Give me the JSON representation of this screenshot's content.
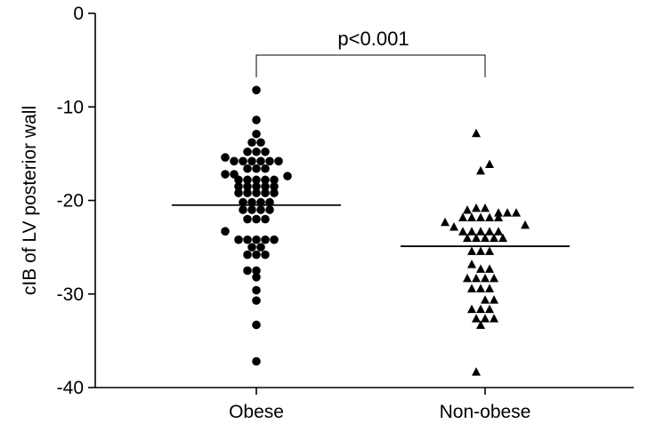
{
  "chart_data": {
    "type": "scatter",
    "subtype": "dot-plot",
    "ylabel": "cIB of LV posterior wall",
    "ylim": [
      -40,
      0
    ],
    "yticks": [
      0,
      -10,
      -20,
      -30,
      -40
    ],
    "categories": [
      "Obese",
      "Non-obese"
    ],
    "grid": false,
    "legend": "none",
    "annotation": {
      "text": "p<0.001",
      "between": [
        "Obese",
        "Non-obese"
      ]
    },
    "series": [
      {
        "category": "Obese",
        "marker": "circle",
        "mean": -20.5,
        "points": [
          [
            0,
            -8.2
          ],
          [
            0,
            -11.4
          ],
          [
            0,
            -12.9
          ],
          [
            -0.5,
            -13.8
          ],
          [
            0.5,
            -13.8
          ],
          [
            -1,
            -14.8
          ],
          [
            0,
            -14.8
          ],
          [
            1,
            -14.8
          ],
          [
            -3.5,
            -15.4
          ],
          [
            -2.5,
            -15.8
          ],
          [
            -1.5,
            -15.8
          ],
          [
            -0.5,
            -15.8
          ],
          [
            0.5,
            -15.8
          ],
          [
            1.5,
            -15.8
          ],
          [
            2.5,
            -15.8
          ],
          [
            -1,
            -16.6
          ],
          [
            0,
            -16.6
          ],
          [
            1,
            -16.6
          ],
          [
            -3.5,
            -17.2
          ],
          [
            -2.5,
            -17.2
          ],
          [
            3.5,
            -17.4
          ],
          [
            -2,
            -17.8
          ],
          [
            -1,
            -17.8
          ],
          [
            0,
            -17.8
          ],
          [
            1,
            -17.8
          ],
          [
            2,
            -17.8
          ],
          [
            -2,
            -18.5
          ],
          [
            -1,
            -18.5
          ],
          [
            0,
            -18.5
          ],
          [
            1,
            -18.5
          ],
          [
            2,
            -18.5
          ],
          [
            -2,
            -19.2
          ],
          [
            -1,
            -19.2
          ],
          [
            0,
            -19.2
          ],
          [
            1,
            -19.2
          ],
          [
            2,
            -19.2
          ],
          [
            -1.5,
            -20.2
          ],
          [
            -0.5,
            -20.2
          ],
          [
            0.5,
            -20.2
          ],
          [
            1.5,
            -20.2
          ],
          [
            -1.5,
            -21.0
          ],
          [
            -0.5,
            -21.0
          ],
          [
            0.5,
            -21.0
          ],
          [
            1.5,
            -21.0
          ],
          [
            -1,
            -22.0
          ],
          [
            0,
            -22.0
          ],
          [
            1,
            -22.0
          ],
          [
            -3.5,
            -23.3
          ],
          [
            -2,
            -24.2
          ],
          [
            -1,
            -24.2
          ],
          [
            0,
            -24.2
          ],
          [
            1,
            -24.2
          ],
          [
            2,
            -24.2
          ],
          [
            -0.5,
            -25.0
          ],
          [
            0.5,
            -25.0
          ],
          [
            -1,
            -25.8
          ],
          [
            0,
            -25.8
          ],
          [
            1,
            -25.8
          ],
          [
            -1,
            -27.5
          ],
          [
            0,
            -27.5
          ],
          [
            0,
            -28.2
          ],
          [
            0,
            -29.6
          ],
          [
            0,
            -30.7
          ],
          [
            0,
            -33.3
          ],
          [
            0,
            -37.2
          ]
        ]
      },
      {
        "category": "Non-obese",
        "marker": "triangle-up",
        "mean": -24.9,
        "points": [
          [
            -1,
            -12.8
          ],
          [
            0.5,
            -16.1
          ],
          [
            -0.5,
            -16.8
          ],
          [
            -2,
            -21.0
          ],
          [
            -1,
            -20.8
          ],
          [
            0,
            -20.8
          ],
          [
            1.5,
            -21.3
          ],
          [
            2.5,
            -21.3
          ],
          [
            3.5,
            -21.3
          ],
          [
            -2.5,
            -21.8
          ],
          [
            -1.5,
            -21.8
          ],
          [
            -0.5,
            -21.8
          ],
          [
            0.5,
            -21.8
          ],
          [
            1.5,
            -21.8
          ],
          [
            -4.5,
            -22.3
          ],
          [
            -3.5,
            -22.8
          ],
          [
            4.5,
            -22.6
          ],
          [
            -2.5,
            -23.3
          ],
          [
            -1.5,
            -23.3
          ],
          [
            -0.5,
            -23.3
          ],
          [
            0.5,
            -23.3
          ],
          [
            1.5,
            -23.3
          ],
          [
            -2,
            -24.0
          ],
          [
            -1,
            -24.0
          ],
          [
            0,
            -24.0
          ],
          [
            1,
            -24.0
          ],
          [
            2,
            -24.0
          ],
          [
            -1.5,
            -25.4
          ],
          [
            -0.5,
            -25.4
          ],
          [
            0.5,
            -25.4
          ],
          [
            -1.5,
            -26.8
          ],
          [
            -0.5,
            -27.3
          ],
          [
            0.5,
            -27.3
          ],
          [
            -2,
            -28.3
          ],
          [
            -1,
            -28.3
          ],
          [
            0,
            -28.3
          ],
          [
            1,
            -28.3
          ],
          [
            -1.5,
            -29.4
          ],
          [
            -0.5,
            -29.4
          ],
          [
            0.5,
            -29.4
          ],
          [
            0,
            -30.6
          ],
          [
            1,
            -30.6
          ],
          [
            -1.5,
            -31.6
          ],
          [
            -0.5,
            -31.6
          ],
          [
            0.5,
            -31.6
          ],
          [
            -1,
            -32.6
          ],
          [
            0,
            -32.6
          ],
          [
            1,
            -32.6
          ],
          [
            -0.5,
            -33.3
          ],
          [
            -1,
            -38.3
          ]
        ]
      }
    ]
  }
}
